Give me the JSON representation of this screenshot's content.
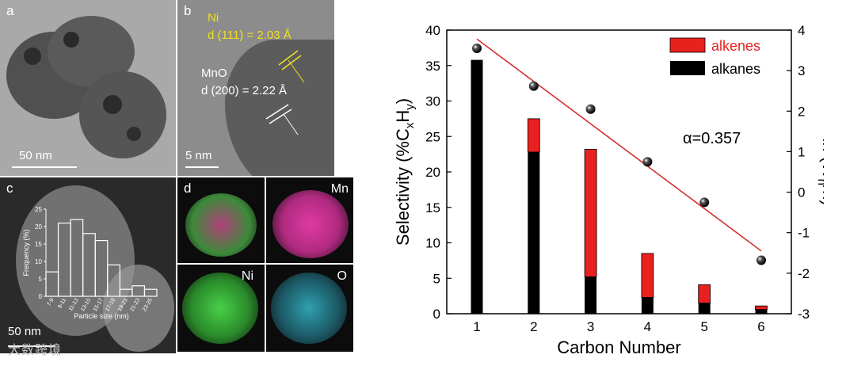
{
  "panels": {
    "a": {
      "label": "a",
      "scale": "50 nm"
    },
    "b": {
      "label": "b",
      "ni_label": "Ni",
      "ni_d": "d (111) = 2.03 Å",
      "mno_label": "MnO",
      "mno_d": "d (200) = 2.22 Å",
      "scale": "5 nm"
    },
    "c": {
      "label": "c",
      "scale": "50 nm",
      "hist_ylabel": "Frequency (%)",
      "hist_xlabel": "Particle size (nm)",
      "hist_yticks": [
        "0",
        "5",
        "10",
        "15",
        "20",
        "25"
      ],
      "hist_bins": [
        "7-9",
        "9-11",
        "11-13",
        "13-15",
        "15-17",
        "17-19",
        "19-21",
        "21-23",
        "23-25"
      ],
      "hist_values": [
        7,
        21,
        22,
        18,
        16,
        9,
        2,
        3,
        2
      ]
    },
    "d": {
      "label": "d",
      "mn": "Mn",
      "ni": "Ni",
      "o": "O"
    }
  },
  "watermark": "大数跨境",
  "colors": {
    "alkenes": "#e8201e",
    "alkanes": "#000000",
    "fit_line": "#d6302a",
    "ni_text": "#f0e020"
  },
  "chart_data": {
    "type": "bar",
    "categories": [
      "1",
      "2",
      "3",
      "4",
      "5",
      "6"
    ],
    "series": [
      {
        "name": "alkanes",
        "values": [
          35.8,
          22.8,
          5.2,
          2.3,
          1.5,
          0.6
        ]
      },
      {
        "name": "alkenes",
        "values": [
          0,
          4.7,
          18.0,
          6.2,
          2.6,
          0.5
        ]
      }
    ],
    "ln_points": [
      3.55,
      2.62,
      2.05,
      0.75,
      -0.25,
      -1.68
    ],
    "fit_line": {
      "x": [
        1,
        6
      ],
      "y": [
        3.78,
        -1.45
      ]
    },
    "xlabel": "Carbon Number",
    "ylabel_left": "Selectivity (%CxHy)",
    "ylabel_right": "ln (Wn/n)",
    "ylim_left": [
      0,
      40
    ],
    "ylim_right": [
      -3,
      4
    ],
    "yticks_left": [
      "0",
      "5",
      "10",
      "15",
      "20",
      "25",
      "30",
      "35",
      "40"
    ],
    "yticks_right": [
      "-3",
      "-2",
      "-1",
      "0",
      "1",
      "2",
      "3",
      "4"
    ],
    "legend": [
      "alkenes",
      "alkanes"
    ],
    "annotation": "α=0.357"
  }
}
